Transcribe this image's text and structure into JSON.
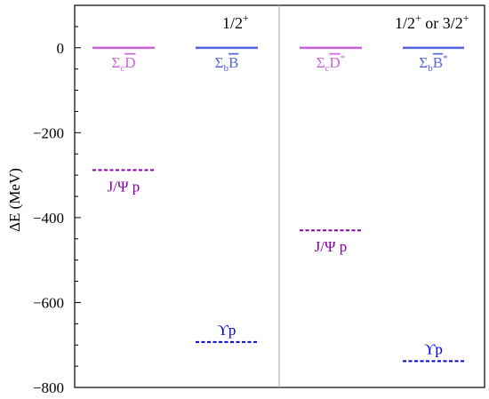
{
  "chart_data": {
    "type": "level-diagram",
    "ylabel": "ΔE (MeV)",
    "ylim": [
      -800,
      100
    ],
    "y_ticks": [
      0,
      -200,
      -400,
      -600,
      -800
    ],
    "y_tick_labels": [
      "0",
      "−200",
      "−400",
      "−600",
      "−800"
    ],
    "panels": [
      {
        "header_main": "1/2",
        "header_sup": "+",
        "levels": [
          {
            "label_base": "Σ",
            "label_sub": "c",
            "label_main": "D",
            "label_sup": "",
            "value": 0,
            "color": "#cc66dd",
            "style": "solid",
            "column": 0
          },
          {
            "label_base": "Σ",
            "label_sub": "b",
            "label_main": "B",
            "label_sup": "",
            "value": 0,
            "color": "#5566e0",
            "style": "solid",
            "column": 1
          },
          {
            "label_text": "J/Ψ p",
            "value": -288,
            "color": "#8800aa",
            "style": "dashed",
            "column": 0,
            "label_pos": "below"
          },
          {
            "label_text": "ϒp",
            "value": -693,
            "color": "#0000cc",
            "style": "dashed",
            "column": 1,
            "label_pos": "above"
          }
        ]
      },
      {
        "header_main": "1/2",
        "header_sup": "+",
        "header_mid": " or 3/2",
        "header_sup2": "+",
        "levels": [
          {
            "label_base": "Σ",
            "label_sub": "c",
            "label_main": "D",
            "label_sup": "*",
            "value": 0,
            "color": "#cc66dd",
            "style": "solid",
            "column": 0
          },
          {
            "label_base": "Σ",
            "label_sub": "b",
            "label_main": "B",
            "label_sup": "*",
            "value": 0,
            "color": "#5566e0",
            "style": "solid",
            "column": 1
          },
          {
            "label_text": "J/Ψ p",
            "value": -430,
            "color": "#8800aa",
            "style": "dashed",
            "column": 0,
            "label_pos": "below"
          },
          {
            "label_text": "ϒp",
            "value": -738,
            "color": "#0000cc",
            "style": "dashed",
            "column": 1,
            "label_pos": "above"
          }
        ]
      }
    ]
  }
}
